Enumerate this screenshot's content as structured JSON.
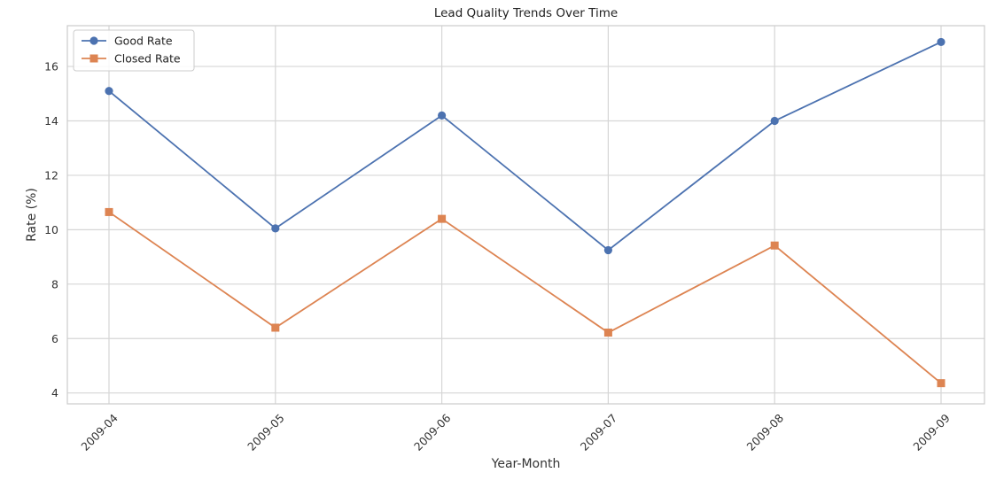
{
  "chart_data": {
    "type": "line",
    "title": "Lead Quality Trends Over Time",
    "xlabel": "Year-Month",
    "ylabel": "Rate (%)",
    "categories": [
      "2009-04",
      "2009-05",
      "2009-06",
      "2009-07",
      "2009-08",
      "2009-09"
    ],
    "ylim": [
      3.6,
      17.5
    ],
    "yticks": [
      4,
      6,
      8,
      10,
      12,
      14,
      16
    ],
    "grid": true,
    "legend_position": "top-left",
    "series": [
      {
        "name": "Good Rate",
        "values": [
          15.1,
          10.05,
          14.2,
          9.25,
          14.0,
          16.9
        ],
        "color": "#4c72b0",
        "marker": "circle"
      },
      {
        "name": "Closed Rate",
        "values": [
          10.65,
          6.4,
          10.4,
          6.22,
          9.42,
          4.36
        ],
        "color": "#dd8452",
        "marker": "square"
      }
    ]
  }
}
